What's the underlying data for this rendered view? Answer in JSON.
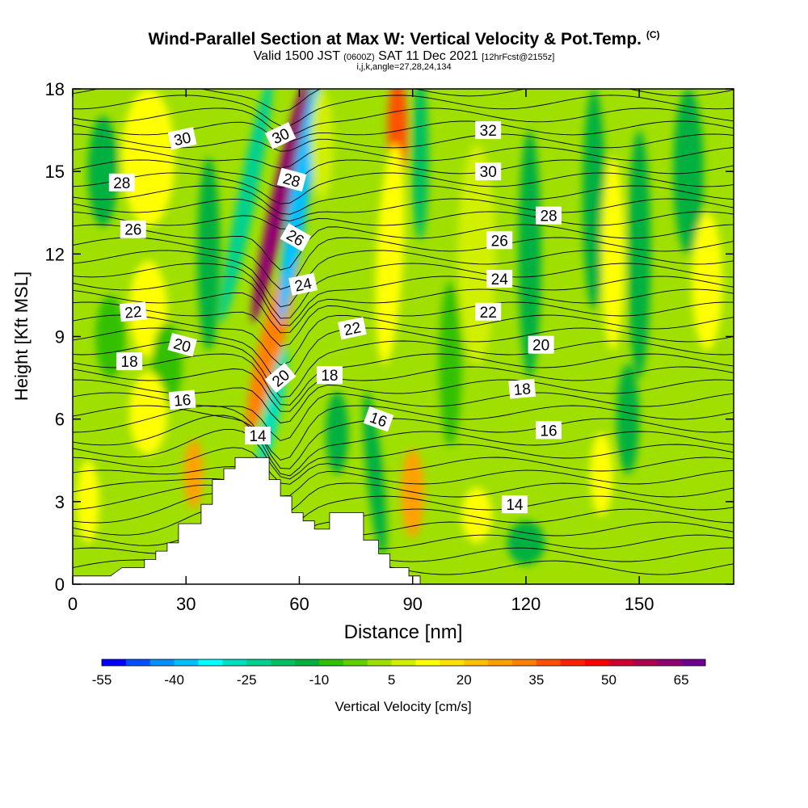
{
  "title": "Wind-Parallel Section at Max W: Vertical Velocity & Pot.Temp.",
  "copyright": "(C)",
  "subtitle": {
    "valid": "Valid 1500 JST",
    "zulu": "(0600Z)",
    "date": "SAT 11 Dec 2021",
    "fcst": "[12hrFcst@2155z]"
  },
  "subtitle2": "i,j,k,angle=27,28,24,134",
  "chart_data": {
    "type": "heatmap",
    "xlabel": "Distance [nm]",
    "ylabel": "Height [Kft MSL]",
    "xlim": [
      0,
      175
    ],
    "ylim": [
      0,
      18
    ],
    "xticks": [
      0,
      30,
      60,
      90,
      120,
      150
    ],
    "yticks": [
      0,
      3,
      6,
      9,
      12,
      15,
      18
    ],
    "colorbar": {
      "label": "Vertical Velocity [cm/s]",
      "tick_labels": [
        "-55",
        "-40",
        "-25",
        "-10",
        "5",
        "20",
        "35",
        "50",
        "65"
      ],
      "tick_values": [
        -55,
        -40,
        -25,
        -10,
        5,
        20,
        35,
        50,
        65
      ],
      "range": [
        -55,
        70
      ],
      "colors": [
        "#0000ff",
        "#0050ff",
        "#0090ff",
        "#00c0ff",
        "#00ffff",
        "#00e0c0",
        "#00d090",
        "#00c060",
        "#00b040",
        "#30c000",
        "#60d000",
        "#a0e000",
        "#d0f000",
        "#ffff00",
        "#ffe000",
        "#ffc000",
        "#ffa000",
        "#ff8000",
        "#ff5000",
        "#ff2000",
        "#ff0000",
        "#d00030",
        "#b00050",
        "#900070",
        "#700090"
      ]
    },
    "terrain_kft": [
      [
        0,
        0.3
      ],
      [
        10,
        0.3
      ],
      [
        13,
        0.6
      ],
      [
        19,
        0.6
      ],
      [
        19,
        0.9
      ],
      [
        22,
        0.9
      ],
      [
        22,
        1.2
      ],
      [
        25,
        1.2
      ],
      [
        25,
        1.5
      ],
      [
        28,
        1.5
      ],
      [
        28,
        2.2
      ],
      [
        34,
        2.2
      ],
      [
        34,
        2.9
      ],
      [
        37,
        2.9
      ],
      [
        37,
        3.8
      ],
      [
        40,
        3.8
      ],
      [
        40,
        4.2
      ],
      [
        43,
        4.2
      ],
      [
        43,
        4.6
      ],
      [
        52,
        4.6
      ],
      [
        52,
        3.8
      ],
      [
        55,
        3.8
      ],
      [
        55,
        3.2
      ],
      [
        58,
        3.2
      ],
      [
        58,
        2.6
      ],
      [
        61,
        2.6
      ],
      [
        61,
        2.3
      ],
      [
        64,
        2.3
      ],
      [
        64,
        2.0
      ],
      [
        68,
        2.0
      ],
      [
        68,
        2.6
      ],
      [
        77,
        2.6
      ],
      [
        77,
        1.6
      ],
      [
        81,
        1.6
      ],
      [
        81,
        1.1
      ],
      [
        84,
        1.1
      ],
      [
        84,
        0.6
      ],
      [
        89,
        0.6
      ],
      [
        89,
        0.3
      ],
      [
        92,
        0.3
      ]
    ],
    "theta_labels": [
      {
        "text": "30",
        "x": 29,
        "y": 16.2,
        "rot": -12
      },
      {
        "text": "28",
        "x": 13,
        "y": 14.6,
        "rot": 0
      },
      {
        "text": "26",
        "x": 16,
        "y": 12.9,
        "rot": 0
      },
      {
        "text": "22",
        "x": 16,
        "y": 9.9,
        "rot": -5
      },
      {
        "text": "20",
        "x": 29,
        "y": 8.7,
        "rot": 15
      },
      {
        "text": "18",
        "x": 15,
        "y": 8.1,
        "rot": 0
      },
      {
        "text": "16",
        "x": 29,
        "y": 6.7,
        "rot": -5
      },
      {
        "text": "14",
        "x": 49,
        "y": 5.4,
        "rot": 0
      },
      {
        "text": "30",
        "x": 55,
        "y": 16.3,
        "rot": -25
      },
      {
        "text": "28",
        "x": 58,
        "y": 14.7,
        "rot": 15
      },
      {
        "text": "26",
        "x": 59,
        "y": 12.6,
        "rot": 30
      },
      {
        "text": "24",
        "x": 61,
        "y": 10.9,
        "rot": -12
      },
      {
        "text": "22",
        "x": 74,
        "y": 9.3,
        "rot": -12
      },
      {
        "text": "20",
        "x": 55,
        "y": 7.5,
        "rot": -40
      },
      {
        "text": "18",
        "x": 68,
        "y": 7.6,
        "rot": 0
      },
      {
        "text": "16",
        "x": 81,
        "y": 6.0,
        "rot": 20
      },
      {
        "text": "32",
        "x": 110,
        "y": 16.5,
        "rot": 0
      },
      {
        "text": "30",
        "x": 110,
        "y": 15.0,
        "rot": 0
      },
      {
        "text": "28",
        "x": 126,
        "y": 13.4,
        "rot": 0
      },
      {
        "text": "26",
        "x": 113,
        "y": 12.5,
        "rot": 0
      },
      {
        "text": "24",
        "x": 113,
        "y": 11.1,
        "rot": 0
      },
      {
        "text": "22",
        "x": 110,
        "y": 9.9,
        "rot": 0
      },
      {
        "text": "20",
        "x": 124,
        "y": 8.7,
        "rot": 0
      },
      {
        "text": "18",
        "x": 119,
        "y": 7.1,
        "rot": -5
      },
      {
        "text": "16",
        "x": 126,
        "y": 5.6,
        "rot": 0
      },
      {
        "text": "14",
        "x": 117,
        "y": 2.9,
        "rot": 0
      }
    ],
    "w_features": [
      {
        "x": 55,
        "y": 14,
        "w": 2.4,
        "h": 9,
        "skew": -0.22,
        "value": 60
      },
      {
        "x": 53,
        "y": 9,
        "w": 3.2,
        "h": 7,
        "skew": -0.25,
        "value": 30
      },
      {
        "x": 60,
        "y": 14,
        "w": 2.6,
        "h": 9,
        "skew": -0.15,
        "value": -40
      },
      {
        "x": 53,
        "y": 6.4,
        "w": 2.2,
        "h": 4.5,
        "skew": -0.2,
        "value": -30
      },
      {
        "x": 46,
        "y": 14,
        "w": 2.4,
        "h": 9,
        "skew": -0.2,
        "value": -25
      },
      {
        "x": 86,
        "y": 16.5,
        "w": 2.6,
        "h": 4,
        "skew": 0,
        "value": 35
      },
      {
        "x": 84,
        "y": 12,
        "w": 3.5,
        "h": 8,
        "skew": -0.05,
        "value": 12
      },
      {
        "x": 92,
        "y": 15.5,
        "w": 2.2,
        "h": 6,
        "skew": 0,
        "value": -20
      },
      {
        "x": 90,
        "y": 3.3,
        "w": 3,
        "h": 3.2,
        "skew": 0,
        "value": 25
      },
      {
        "x": 32,
        "y": 4.0,
        "w": 2.5,
        "h": 2.5,
        "skew": 0,
        "value": 25
      },
      {
        "x": 80,
        "y": 4,
        "w": 2.2,
        "h": 6,
        "skew": 0.1,
        "value": -15
      },
      {
        "x": 20,
        "y": 15.5,
        "w": 7,
        "h": 5,
        "skew": 0,
        "value": 12
      },
      {
        "x": 20,
        "y": 10,
        "w": 5,
        "h": 3.5,
        "skew": 0,
        "value": 10
      },
      {
        "x": 36,
        "y": 12,
        "w": 3,
        "h": 7,
        "skew": 0,
        "value": -12
      },
      {
        "x": 25,
        "y": 8,
        "w": 4,
        "h": 3,
        "skew": 0,
        "value": -10
      },
      {
        "x": 4,
        "y": 3,
        "w": 3,
        "h": 3,
        "skew": 0,
        "value": 10
      },
      {
        "x": 8,
        "y": 15,
        "w": 4,
        "h": 4,
        "skew": 0,
        "value": -12
      },
      {
        "x": 20,
        "y": 6.2,
        "w": 5,
        "h": 3,
        "skew": 0,
        "value": 10
      },
      {
        "x": 107,
        "y": 12,
        "w": 5,
        "h": 8,
        "skew": 0,
        "value": 9
      },
      {
        "x": 121,
        "y": 12,
        "w": 3,
        "h": 9,
        "skew": 0,
        "value": -12
      },
      {
        "x": 138,
        "y": 14,
        "w": 3,
        "h": 8,
        "skew": 0,
        "value": -14
      },
      {
        "x": 143,
        "y": 12,
        "w": 3,
        "h": 7,
        "skew": 0,
        "value": 10
      },
      {
        "x": 150,
        "y": 12,
        "w": 3,
        "h": 9,
        "skew": 0,
        "value": -12
      },
      {
        "x": 163,
        "y": 15,
        "w": 4,
        "h": 6,
        "skew": 0,
        "value": -12
      },
      {
        "x": 168,
        "y": 11,
        "w": 4,
        "h": 5,
        "skew": 0,
        "value": 10
      },
      {
        "x": 100,
        "y": 8,
        "w": 3,
        "h": 6,
        "skew": 0,
        "value": -10
      },
      {
        "x": 120,
        "y": 1.5,
        "w": 5,
        "h": 1.6,
        "skew": 0,
        "value": -12
      },
      {
        "x": 107,
        "y": 2.5,
        "w": 4,
        "h": 2,
        "skew": 0,
        "value": 10
      },
      {
        "x": 140,
        "y": 4,
        "w": 3,
        "h": 3,
        "skew": 0,
        "value": 10
      },
      {
        "x": 147,
        "y": 6,
        "w": 3,
        "h": 4,
        "skew": 0,
        "value": -12
      },
      {
        "x": 10,
        "y": 9,
        "w": 4,
        "h": 3,
        "skew": 0,
        "value": -10
      },
      {
        "x": 70,
        "y": 5.5,
        "w": 3,
        "h": 3,
        "skew": 0,
        "value": -12
      },
      {
        "x": 66,
        "y": 16,
        "w": 3,
        "h": 4,
        "skew": 0,
        "value": 8
      }
    ]
  }
}
